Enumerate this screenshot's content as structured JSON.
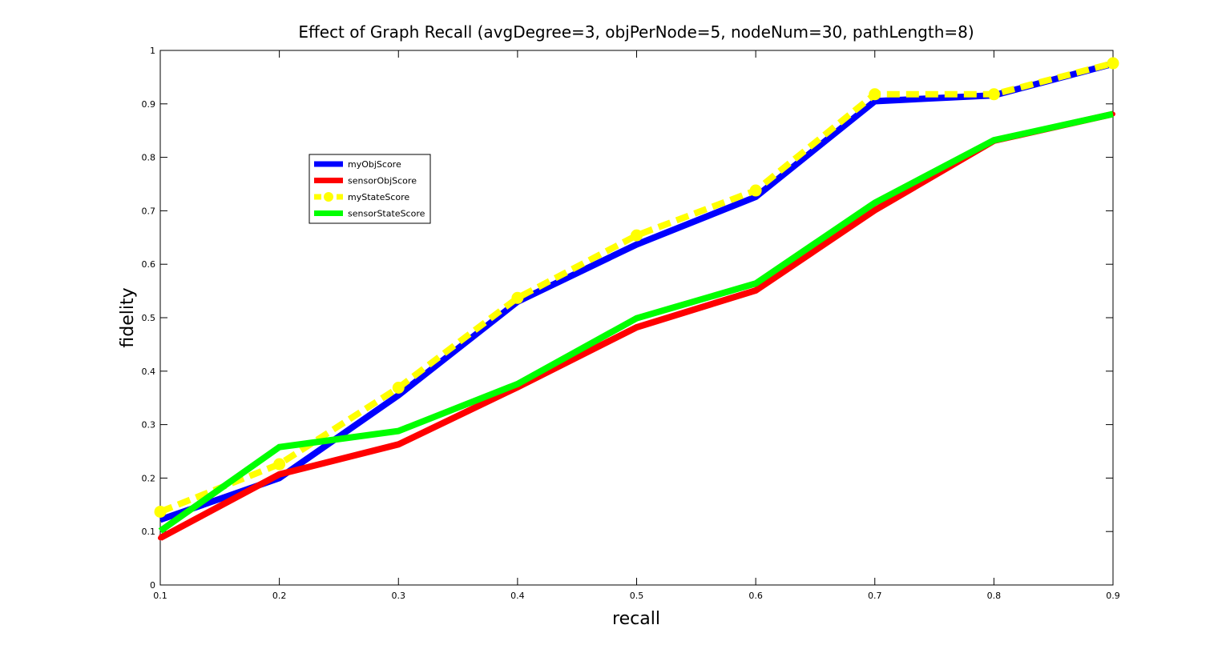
{
  "chart_data": {
    "type": "line",
    "title": "Effect of Graph Recall (avgDegree=3, objPerNode=5, nodeNum=30, pathLength=8)",
    "xlabel": "recall",
    "ylabel": "fidelity",
    "xlim": [
      0.1,
      0.9
    ],
    "ylim": [
      0,
      1
    ],
    "x_ticks": [
      "0.1",
      "0.2",
      "0.3",
      "0.4",
      "0.5",
      "0.6",
      "0.7",
      "0.8",
      "0.9"
    ],
    "y_ticks": [
      "0",
      "0.1",
      "0.2",
      "0.3",
      "0.4",
      "0.5",
      "0.6",
      "0.7",
      "0.8",
      "0.9",
      "1"
    ],
    "grid": false,
    "legend_position": "upper-left",
    "x": [
      0.1,
      0.2,
      0.3,
      0.4,
      0.5,
      0.6,
      0.7,
      0.8,
      0.9
    ],
    "series": [
      {
        "name": "myObjScore",
        "color": "#0000ff",
        "style": "solid",
        "marker": "none",
        "values": [
          0.122,
          0.2,
          0.355,
          0.53,
          0.637,
          0.726,
          0.905,
          0.916,
          0.975
        ]
      },
      {
        "name": "sensorObjScore",
        "color": "#ff0000",
        "style": "solid",
        "marker": "dot",
        "values": [
          0.088,
          0.207,
          0.263,
          0.37,
          0.482,
          0.551,
          0.701,
          0.831,
          0.881
        ]
      },
      {
        "name": "myStateScore",
        "color": "#ffff00",
        "style": "dashed",
        "marker": "circle",
        "values": [
          0.137,
          0.226,
          0.369,
          0.537,
          0.654,
          0.738,
          0.918,
          0.918,
          0.976
        ]
      },
      {
        "name": "sensorStateScore",
        "color": "#00ff00",
        "style": "solid",
        "marker": "none",
        "values": [
          0.101,
          0.258,
          0.288,
          0.376,
          0.499,
          0.564,
          0.715,
          0.832,
          0.881
        ]
      }
    ]
  }
}
